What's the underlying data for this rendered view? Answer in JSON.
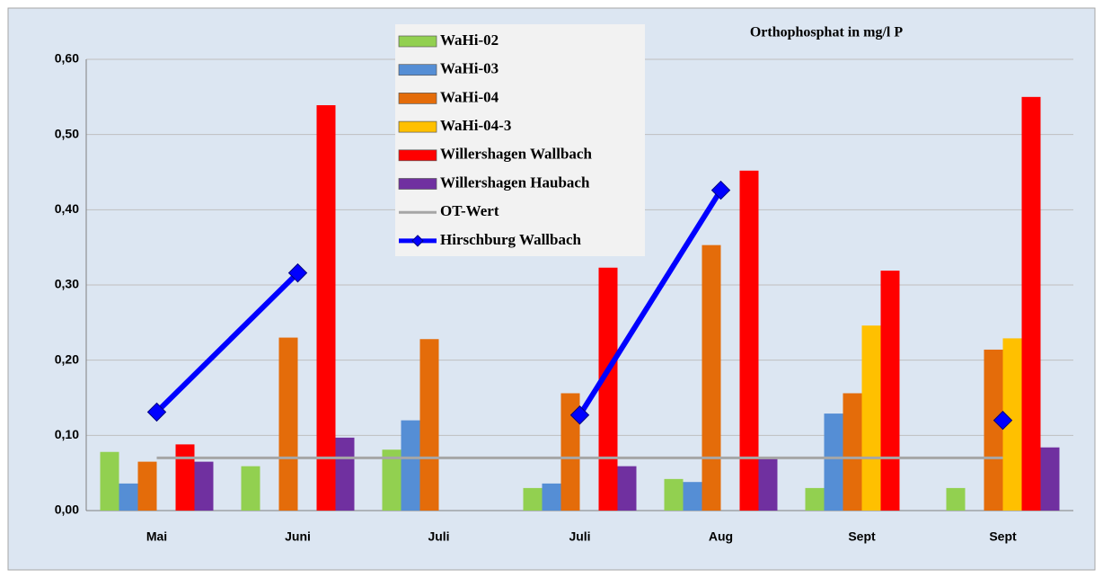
{
  "chart_data": {
    "type": "bar",
    "title": "Orthophosphat  in mg/l P",
    "categories": [
      "Mai",
      "Juni",
      "Juli",
      "Juli",
      "Aug",
      "Sept",
      "Sept"
    ],
    "series": [
      {
        "name": "WaHi-02",
        "type": "bar",
        "color": "#92d050",
        "values": [
          0.078,
          0.059,
          0.081,
          0.03,
          0.042,
          0.03,
          0.03
        ]
      },
      {
        "name": "WaHi-03",
        "type": "bar",
        "color": "#558ed5",
        "values": [
          0.036,
          null,
          0.12,
          0.036,
          0.038,
          0.129,
          null
        ]
      },
      {
        "name": "WaHi-04",
        "type": "bar",
        "color": "#e46c0a",
        "values": [
          0.065,
          0.23,
          0.228,
          0.156,
          0.353,
          0.156,
          0.214
        ]
      },
      {
        "name": "WaHi-04-3",
        "type": "bar",
        "color": "#ffc000",
        "values": [
          null,
          null,
          null,
          null,
          null,
          0.246,
          0.229
        ]
      },
      {
        "name": "Willershagen Wallbach",
        "type": "bar",
        "color": "#ff0000",
        "values": [
          0.088,
          0.539,
          null,
          0.323,
          0.452,
          0.319,
          0.55
        ]
      },
      {
        "name": "Willershagen Haubach",
        "type": "bar",
        "color": "#7030a0",
        "values": [
          0.065,
          0.097,
          null,
          0.059,
          0.069,
          null,
          0.084
        ]
      },
      {
        "name": "OT-Wert",
        "type": "line",
        "color": "#a6a6a6",
        "values": [
          0.07,
          0.07,
          0.07,
          0.07,
          0.07,
          0.07,
          0.07
        ]
      },
      {
        "name": "Hirschburg Wallbach",
        "type": "line",
        "marker": "diamond",
        "color": "#0000ff",
        "values": [
          0.131,
          0.316,
          null,
          0.127,
          0.426,
          null,
          0.12
        ]
      }
    ],
    "ylim": [
      0,
      0.6
    ],
    "yticks": [
      {
        "value": 0,
        "label": "0,00"
      },
      {
        "value": 0.1,
        "label": "0,10"
      },
      {
        "value": 0.2,
        "label": "0,20"
      },
      {
        "value": 0.3,
        "label": "0,30"
      },
      {
        "value": 0.4,
        "label": "0,40"
      },
      {
        "value": 0.5,
        "label": "0,50"
      },
      {
        "value": 0.6,
        "label": "0,60"
      }
    ],
    "grid": true
  }
}
